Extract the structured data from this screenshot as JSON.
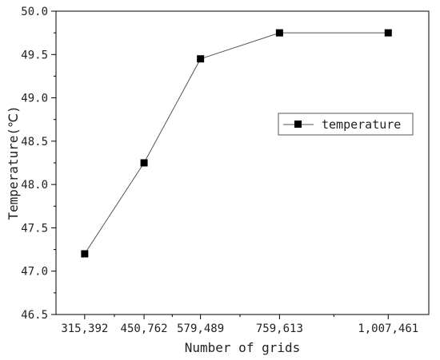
{
  "chart_data": {
    "type": "line",
    "title": "",
    "xlabel": "Number of grids",
    "ylabel": "Temperature(℃)",
    "x": [
      315392,
      450762,
      579489,
      759613,
      1007461
    ],
    "x_tick_labels": [
      "315,392",
      "450,762",
      "579,489",
      "759,613",
      "1,007,461"
    ],
    "ylim": [
      46.5,
      50.0
    ],
    "y_ticks": [
      46.5,
      47.0,
      47.5,
      48.0,
      48.5,
      49.0,
      49.5,
      50.0
    ],
    "y_tick_labels": [
      "46.5",
      "47.0",
      "47.5",
      "48.0",
      "48.5",
      "49.0",
      "49.5",
      "50.0"
    ],
    "series": [
      {
        "name": "temperature",
        "values": [
          47.2,
          48.25,
          49.45,
          49.75,
          49.75
        ],
        "marker": "square",
        "marker_color": "#000000",
        "line_color": "#555555"
      }
    ],
    "legend_position": "right-middle",
    "grid": false
  }
}
